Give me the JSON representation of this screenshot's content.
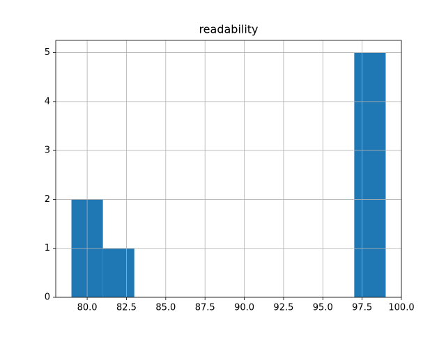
{
  "chart_data": {
    "type": "histogram",
    "title": "readability",
    "bins": [
      79,
      81,
      83,
      85,
      87,
      89,
      91,
      93,
      95,
      97,
      99
    ],
    "values": [
      2,
      1,
      0,
      0,
      0,
      0,
      0,
      0,
      0,
      5
    ],
    "color": "#1f77b4",
    "xlim": [
      78,
      100
    ],
    "xticks": [
      {
        "value": 80,
        "label": "80.0"
      },
      {
        "value": 82.5,
        "label": "82.5"
      },
      {
        "value": 85,
        "label": "85.0"
      },
      {
        "value": 87.5,
        "label": "87.5"
      },
      {
        "value": 90,
        "label": "90.0"
      },
      {
        "value": 92.5,
        "label": "92.5"
      },
      {
        "value": 95,
        "label": "95.0"
      },
      {
        "value": 97.5,
        "label": "97.5"
      },
      {
        "value": 100,
        "label": "100.0"
      }
    ],
    "ylim": [
      0,
      5.25
    ],
    "yticks": [
      0,
      1,
      2,
      3,
      4,
      5
    ],
    "grid": true
  }
}
